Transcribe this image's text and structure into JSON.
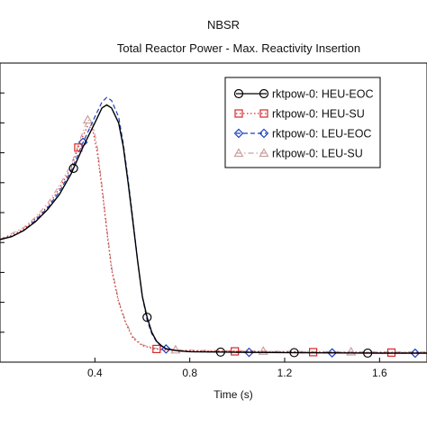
{
  "chart_data": {
    "type": "line",
    "title": "NBSR",
    "subtitle": "Total Reactor Power - Max. Reactivity Insertion",
    "xlabel": "Time (s)",
    "ylabel": "",
    "xlim": [
      0.0,
      1.8
    ],
    "ylim": [
      0,
      10
    ],
    "x_ticks": [
      "0.4",
      "0.8",
      "1.2",
      "1.6"
    ],
    "grid": false,
    "legend_position": "top-right",
    "series": [
      {
        "name": "rktpow-0: HEU-EOC",
        "color": "#000000",
        "line": "solid",
        "marker": "circle",
        "x": [
          0.0,
          0.05,
          0.1,
          0.15,
          0.2,
          0.25,
          0.3,
          0.35,
          0.4,
          0.43,
          0.45,
          0.47,
          0.5,
          0.52,
          0.54,
          0.56,
          0.58,
          0.6,
          0.62,
          0.64,
          0.66,
          0.68,
          0.7,
          0.75,
          0.8,
          0.9,
          1.0,
          1.2,
          1.4,
          1.6,
          1.8
        ],
        "y": [
          4.1,
          4.2,
          4.4,
          4.7,
          5.1,
          5.6,
          6.3,
          7.2,
          8.0,
          8.5,
          8.6,
          8.5,
          8.0,
          7.2,
          6.0,
          4.7,
          3.4,
          2.2,
          1.5,
          1.0,
          0.7,
          0.55,
          0.45,
          0.38,
          0.35,
          0.34,
          0.33,
          0.32,
          0.31,
          0.3,
          0.3
        ],
        "marker_x": [
          0.31,
          0.62,
          0.93,
          1.24,
          1.55
        ]
      },
      {
        "name": "rktpow-0: HEU-SU",
        "color": "#d62728",
        "line": "dotted",
        "marker": "square",
        "x": [
          0.0,
          0.05,
          0.1,
          0.15,
          0.2,
          0.25,
          0.3,
          0.34,
          0.37,
          0.39,
          0.41,
          0.43,
          0.45,
          0.47,
          0.5,
          0.53,
          0.56,
          0.6,
          0.65,
          0.7,
          0.8,
          1.0,
          1.2,
          1.4,
          1.6,
          1.8
        ],
        "y": [
          4.1,
          4.25,
          4.45,
          4.8,
          5.2,
          5.8,
          6.5,
          7.4,
          7.9,
          7.8,
          7.0,
          5.8,
          4.4,
          3.1,
          2.0,
          1.3,
          0.8,
          0.55,
          0.45,
          0.4,
          0.38,
          0.36,
          0.34,
          0.33,
          0.32,
          0.32
        ],
        "marker_x": [
          0.33,
          0.66,
          0.99,
          1.32,
          1.65
        ]
      },
      {
        "name": "rktpow-0: LEU-EOC",
        "color": "#1f3fbf",
        "line": "dashed",
        "marker": "diamond",
        "x": [
          0.0,
          0.05,
          0.1,
          0.15,
          0.2,
          0.25,
          0.3,
          0.35,
          0.4,
          0.43,
          0.45,
          0.47,
          0.5,
          0.52,
          0.54,
          0.56,
          0.58,
          0.6,
          0.62,
          0.64,
          0.66,
          0.68,
          0.7,
          0.75,
          0.8,
          0.9,
          1.0,
          1.2,
          1.4,
          1.6,
          1.8
        ],
        "y": [
          4.1,
          4.2,
          4.4,
          4.75,
          5.15,
          5.7,
          6.4,
          7.35,
          8.2,
          8.7,
          8.85,
          8.75,
          8.2,
          7.3,
          6.1,
          4.8,
          3.4,
          2.2,
          1.4,
          0.95,
          0.68,
          0.52,
          0.44,
          0.38,
          0.35,
          0.34,
          0.33,
          0.32,
          0.31,
          0.3,
          0.3
        ],
        "marker_x": [
          0.35,
          0.7,
          1.05,
          1.4,
          1.75
        ]
      },
      {
        "name": "rktpow-0: LEU-SU",
        "color": "#c9a0a0",
        "line": "dash-dot",
        "marker": "triangle",
        "x": [
          0.0,
          0.05,
          0.1,
          0.15,
          0.2,
          0.25,
          0.3,
          0.34,
          0.37,
          0.39,
          0.41,
          0.43,
          0.45,
          0.47,
          0.5,
          0.53,
          0.56,
          0.6,
          0.65,
          0.7,
          0.8,
          1.0,
          1.2,
          1.4,
          1.6,
          1.8
        ],
        "y": [
          4.1,
          4.3,
          4.5,
          4.85,
          5.3,
          5.9,
          6.6,
          7.5,
          8.1,
          8.0,
          7.2,
          5.9,
          4.5,
          3.2,
          2.05,
          1.35,
          0.85,
          0.58,
          0.47,
          0.42,
          0.4,
          0.38,
          0.36,
          0.35,
          0.34,
          0.34
        ],
        "marker_x": [
          0.37,
          0.74,
          1.11,
          1.48
        ]
      }
    ]
  }
}
